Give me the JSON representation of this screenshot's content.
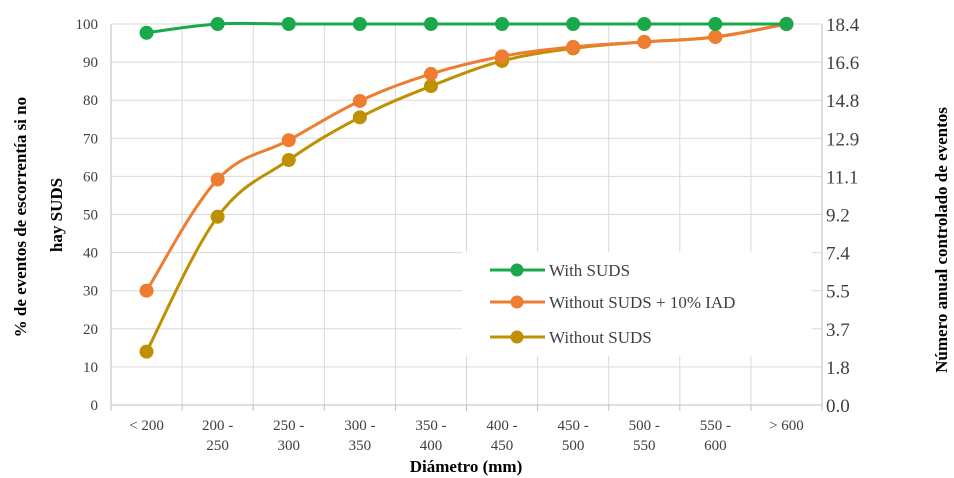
{
  "chart_data": {
    "type": "line",
    "categories": [
      [
        "< 200"
      ],
      [
        "200 -",
        "250"
      ],
      [
        "250 -",
        "300"
      ],
      [
        "300 -",
        "350"
      ],
      [
        "350 -",
        "400"
      ],
      [
        "400 -",
        "450"
      ],
      [
        "450 -",
        "500"
      ],
      [
        "500 -",
        "550"
      ],
      [
        "550 -",
        "600"
      ],
      [
        "> 600"
      ]
    ],
    "xlabel": "Diámetro (mm)",
    "ylabel_lines": [
      "% de eventos de escorrentía si no",
      "hay SUDS"
    ],
    "y2label": "Número anual controlado de eventos",
    "ylim": [
      0,
      100
    ],
    "yticks": [
      "0",
      "10",
      "20",
      "30",
      "40",
      "50",
      "60",
      "70",
      "80",
      "90",
      "100"
    ],
    "y2ticks": [
      "0.0",
      "1.8",
      "3.7",
      "5.5",
      "7.4",
      "9.2",
      "11.1",
      "12.9",
      "14.8",
      "16.6",
      "18.4"
    ],
    "grid": true,
    "legend_position": "bottom-right",
    "series": [
      {
        "name": "With SUDS",
        "color": "#19a84a",
        "values": [
          97.7,
          100,
          100,
          100,
          100,
          100,
          100,
          100,
          100,
          100
        ]
      },
      {
        "name": "Without SUDS + 10% IAD",
        "color": "#ee7d31",
        "values": [
          30,
          59.2,
          69.5,
          79.8,
          86.9,
          91.5,
          94,
          95.3,
          96.6,
          100
        ]
      },
      {
        "name": "Without SUDS",
        "color": "#bf9000",
        "values": [
          14,
          49.4,
          64.3,
          75.5,
          83.7,
          90.3,
          93.6,
          95.3,
          96.6,
          100
        ]
      }
    ]
  }
}
